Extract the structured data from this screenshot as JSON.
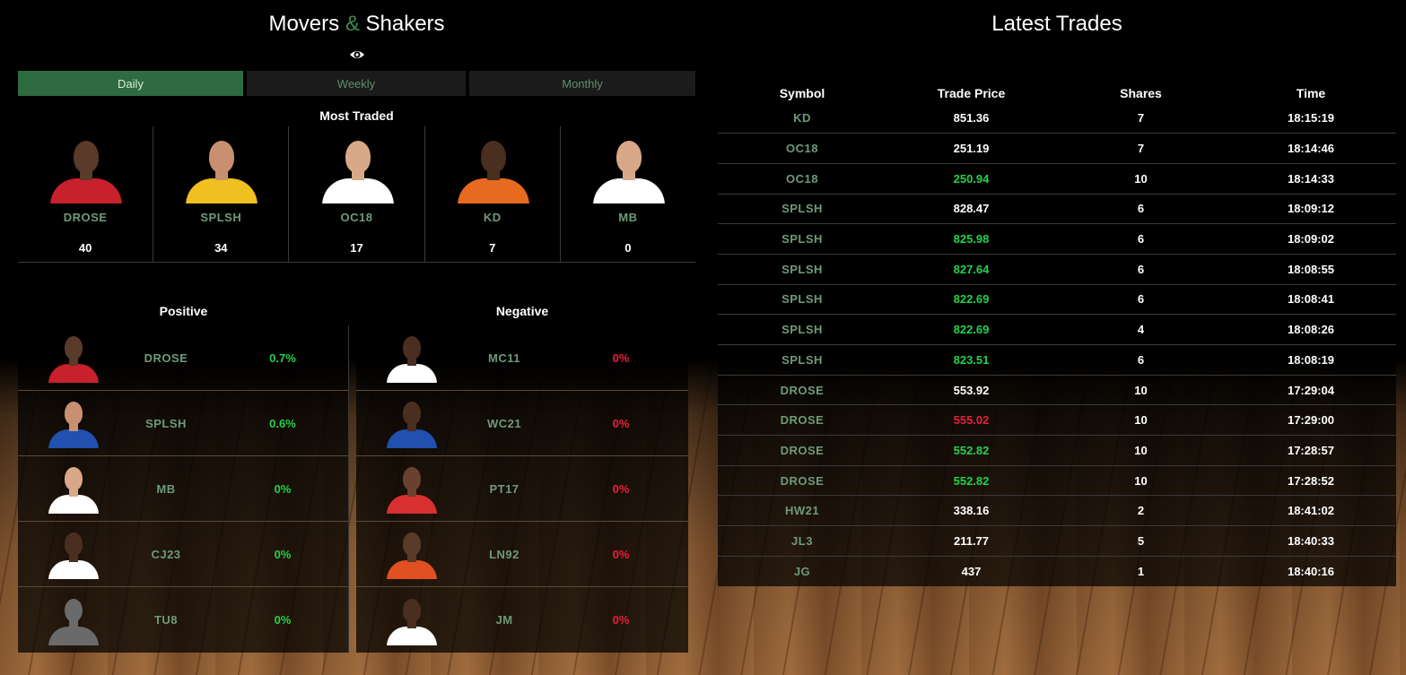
{
  "movers": {
    "title_part1": "Movers",
    "title_amp": "&",
    "title_part2": "Shakers",
    "visibility_icon": "eye-icon",
    "tabs": [
      {
        "label": "Daily",
        "active": true
      },
      {
        "label": "Weekly",
        "active": false
      },
      {
        "label": "Monthly",
        "active": false
      }
    ],
    "most_traded_title": "Most Traded",
    "most_traded": [
      {
        "symbol": "DROSE",
        "count": "40",
        "skin": "#5a3a28",
        "jersey": "#c8202c"
      },
      {
        "symbol": "SPLSH",
        "count": "34",
        "skin": "#c89070",
        "jersey": "#f0c020"
      },
      {
        "symbol": "OC18",
        "count": "17",
        "skin": "#d8a888",
        "jersey": "#ffffff"
      },
      {
        "symbol": "KD",
        "count": "7",
        "skin": "#4a2e20",
        "jersey": "#e86a20"
      },
      {
        "symbol": "MB",
        "count": "0",
        "skin": "#d8a888",
        "jersey": "#ffffff"
      }
    ],
    "positive_title": "Positive",
    "negative_title": "Negative",
    "positive": [
      {
        "symbol": "DROSE",
        "change": "0.7%",
        "skin": "#5a3a28",
        "jersey": "#c8202c"
      },
      {
        "symbol": "SPLSH",
        "change": "0.6%",
        "skin": "#c89070",
        "jersey": "#2050b0"
      },
      {
        "symbol": "MB",
        "change": "0%",
        "skin": "#d8a888",
        "jersey": "#ffffff"
      },
      {
        "symbol": "CJ23",
        "change": "0%",
        "skin": "#4a2e20",
        "jersey": "#ffffff"
      },
      {
        "symbol": "TU8",
        "change": "0%",
        "skin": "#6a6a6a",
        "jersey": "#6a6a6a",
        "placeholder": true
      }
    ],
    "negative": [
      {
        "symbol": "MC11",
        "change": "0%",
        "skin": "#4a2e20",
        "jersey": "#ffffff"
      },
      {
        "symbol": "WC21",
        "change": "0%",
        "skin": "#4a2e20",
        "jersey": "#2050b0"
      },
      {
        "symbol": "PT17",
        "change": "0%",
        "skin": "#6a4030",
        "jersey": "#d83030"
      },
      {
        "symbol": "LN92",
        "change": "0%",
        "skin": "#5a3a28",
        "jersey": "#e05020"
      },
      {
        "symbol": "JM",
        "change": "0%",
        "skin": "#4a2e20",
        "jersey": "#ffffff"
      }
    ]
  },
  "trades": {
    "title": "Latest Trades",
    "columns": [
      "Symbol",
      "Trade Price",
      "Shares",
      "Time"
    ],
    "rows": [
      {
        "symbol": "KD",
        "price": "851.36",
        "shares": "7",
        "time": "18:15:19",
        "price_color": "white"
      },
      {
        "symbol": "OC18",
        "price": "251.19",
        "shares": "7",
        "time": "18:14:46",
        "price_color": "white"
      },
      {
        "symbol": "OC18",
        "price": "250.94",
        "shares": "10",
        "time": "18:14:33",
        "price_color": "green"
      },
      {
        "symbol": "SPLSH",
        "price": "828.47",
        "shares": "6",
        "time": "18:09:12",
        "price_color": "white"
      },
      {
        "symbol": "SPLSH",
        "price": "825.98",
        "shares": "6",
        "time": "18:09:02",
        "price_color": "green"
      },
      {
        "symbol": "SPLSH",
        "price": "827.64",
        "shares": "6",
        "time": "18:08:55",
        "price_color": "green"
      },
      {
        "symbol": "SPLSH",
        "price": "822.69",
        "shares": "6",
        "time": "18:08:41",
        "price_color": "green"
      },
      {
        "symbol": "SPLSH",
        "price": "822.69",
        "shares": "4",
        "time": "18:08:26",
        "price_color": "green"
      },
      {
        "symbol": "SPLSH",
        "price": "823.51",
        "shares": "6",
        "time": "18:08:19",
        "price_color": "green"
      },
      {
        "symbol": "DROSE",
        "price": "553.92",
        "shares": "10",
        "time": "17:29:04",
        "price_color": "white"
      },
      {
        "symbol": "DROSE",
        "price": "555.02",
        "shares": "10",
        "time": "17:29:00",
        "price_color": "red"
      },
      {
        "symbol": "DROSE",
        "price": "552.82",
        "shares": "10",
        "time": "17:28:57",
        "price_color": "green"
      },
      {
        "symbol": "DROSE",
        "price": "552.82",
        "shares": "10",
        "time": "17:28:52",
        "price_color": "green"
      },
      {
        "symbol": "HW21",
        "price": "338.16",
        "shares": "2",
        "time": "18:41:02",
        "price_color": "white"
      },
      {
        "symbol": "JL3",
        "price": "211.77",
        "shares": "5",
        "time": "18:40:33",
        "price_color": "white"
      },
      {
        "symbol": "JG",
        "price": "437",
        "shares": "1",
        "time": "18:40:16",
        "price_color": "white"
      }
    ]
  },
  "colors": {
    "accent_green": "#2e6b40",
    "symbol_green": "#6e9a78",
    "positive": "#22d24a",
    "negative": "#e8203a"
  }
}
